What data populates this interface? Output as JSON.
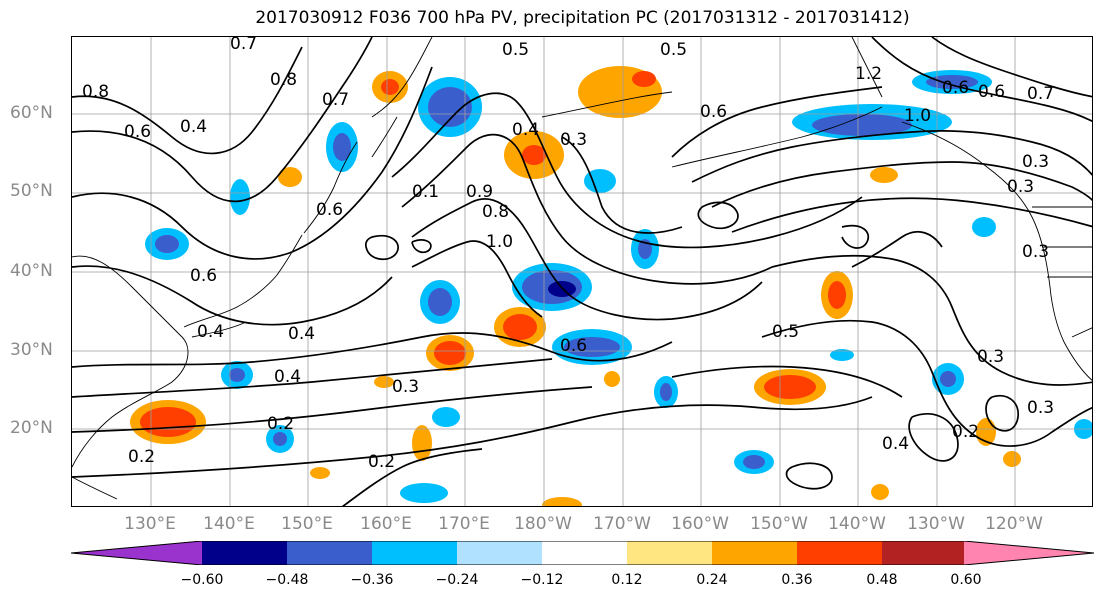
{
  "title": "2017030912 F036 700 hPa PV, precipitation PC (2017031312 - 2017031412)",
  "lat_labels": [
    "60°N",
    "50°N",
    "40°N",
    "30°N",
    "20°N"
  ],
  "lon_labels": [
    "130°E",
    "140°E",
    "150°E",
    "160°E",
    "170°E",
    "180°W",
    "170°W",
    "160°W",
    "150°W",
    "140°W",
    "130°W",
    "120°W"
  ],
  "colorbar": {
    "colors": [
      "#9a32cd",
      "#00008b",
      "#3a5fcd",
      "#00bfff",
      "#b0e2ff",
      "#ffffff",
      "#ffe680",
      "#ffa500",
      "#ff3f00",
      "#b22222",
      "#ff85b0"
    ],
    "tick_labels": [
      "−0.60",
      "−0.48",
      "−0.36",
      "−0.24",
      "−0.12",
      "0.12",
      "0.24",
      "0.36",
      "0.48",
      "0.60"
    ]
  },
  "contour_labels": [
    "0.7",
    "0.8",
    "0.8",
    "0.7",
    "0.5",
    "0.5",
    "1.2",
    "0.6",
    "0.6",
    "0.4",
    "0.4",
    "0.3",
    "0.6",
    "0.1",
    "1.0",
    "0.7",
    "0.6",
    "0.6",
    "0.9",
    "1.0",
    "0.8",
    "0.6",
    "0.3",
    "0.4",
    "0.5",
    "0.3",
    "0.4",
    "0.6",
    "0.3",
    "0.2",
    "0.4",
    "0.3",
    "0.2",
    "0.2",
    "0.4",
    "0.2",
    "0.3",
    "0.3"
  ],
  "colors": {
    "title": "#000000",
    "axis_labels": "#8a8a8a",
    "contours": "#000000",
    "grid": "#9e9e9e"
  }
}
